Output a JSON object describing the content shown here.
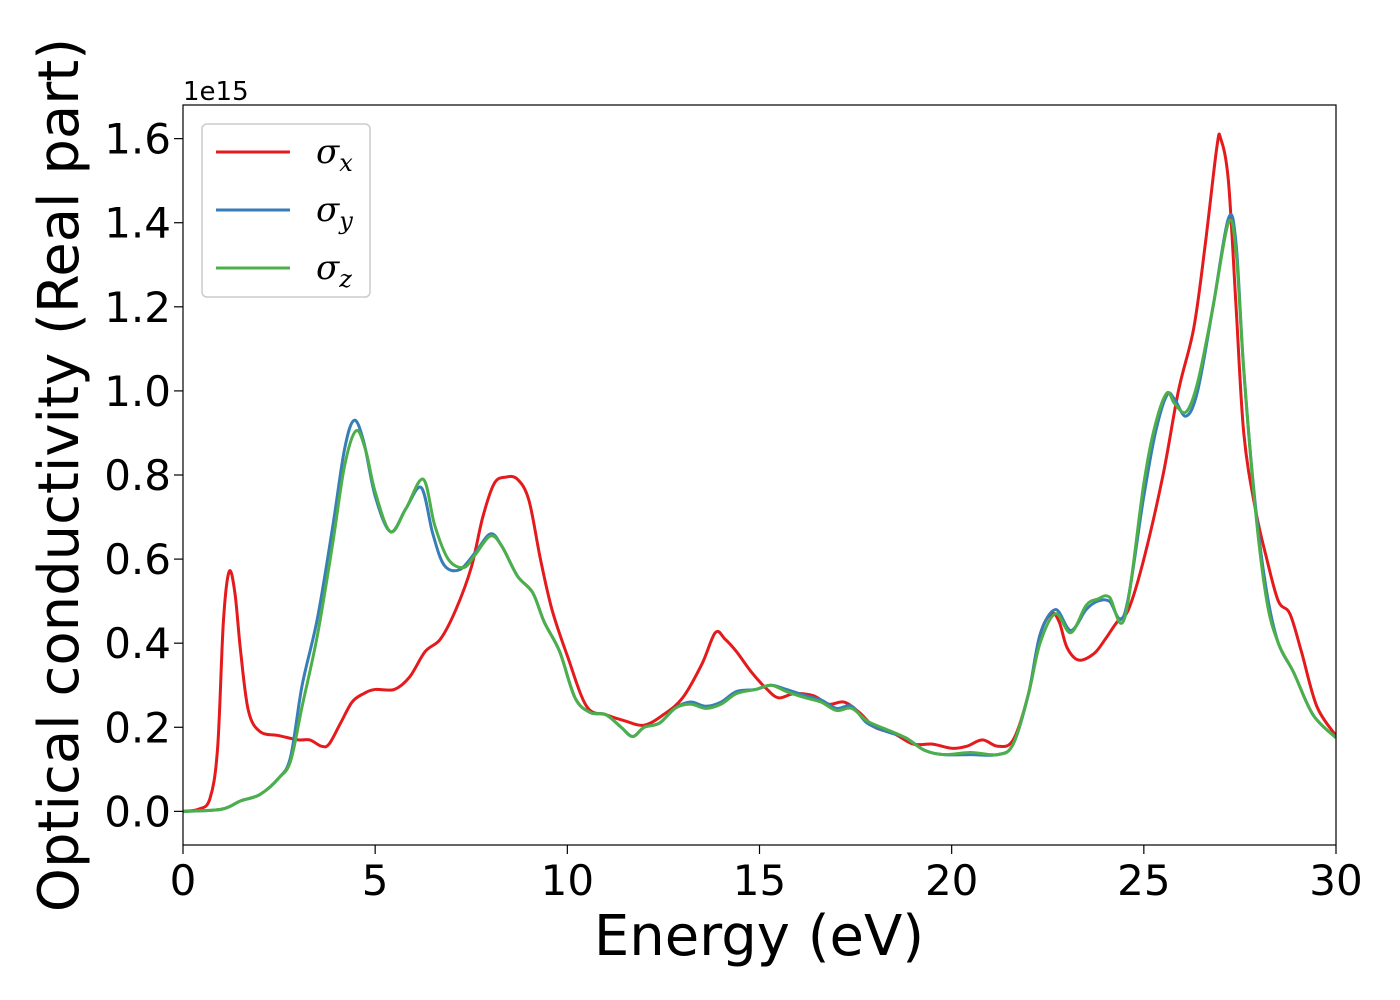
{
  "chart_data": {
    "type": "line",
    "title": "",
    "xlabel": "Energy (eV)",
    "ylabel": "Optical conductivity (Real part)",
    "y_offset_label": "1e15",
    "xlim": [
      0,
      30
    ],
    "ylim": [
      -0.08,
      1.68
    ],
    "x_ticks": [
      0,
      5,
      10,
      15,
      20,
      25,
      30
    ],
    "x_tick_labels": [
      "0",
      "5",
      "10",
      "15",
      "20",
      "25",
      "30"
    ],
    "y_ticks": [
      0.0,
      0.2,
      0.4,
      0.6,
      0.8,
      1.0,
      1.2,
      1.4,
      1.6
    ],
    "y_tick_labels": [
      "0.0",
      "0.2",
      "0.4",
      "0.6",
      "0.8",
      "1.0",
      "1.2",
      "1.4",
      "1.6"
    ],
    "grid": false,
    "legend_position": "top-left",
    "series": [
      {
        "name": "σx",
        "legend_symbol": "σ",
        "legend_subscript": "x",
        "color": "#e41a1c",
        "points": [
          [
            0,
            0
          ],
          [
            0.4,
            0.005
          ],
          [
            0.7,
            0.03
          ],
          [
            0.9,
            0.15
          ],
          [
            1.05,
            0.45
          ],
          [
            1.2,
            0.57
          ],
          [
            1.35,
            0.52
          ],
          [
            1.5,
            0.38
          ],
          [
            1.7,
            0.24
          ],
          [
            2.0,
            0.19
          ],
          [
            2.5,
            0.18
          ],
          [
            3.0,
            0.17
          ],
          [
            3.3,
            0.17
          ],
          [
            3.6,
            0.155
          ],
          [
            3.8,
            0.16
          ],
          [
            4.1,
            0.21
          ],
          [
            4.4,
            0.26
          ],
          [
            4.7,
            0.28
          ],
          [
            5.0,
            0.29
          ],
          [
            5.5,
            0.29
          ],
          [
            5.9,
            0.32
          ],
          [
            6.3,
            0.38
          ],
          [
            6.7,
            0.41
          ],
          [
            7.1,
            0.48
          ],
          [
            7.5,
            0.58
          ],
          [
            7.8,
            0.7
          ],
          [
            8.1,
            0.78
          ],
          [
            8.4,
            0.795
          ],
          [
            8.7,
            0.79
          ],
          [
            9.0,
            0.74
          ],
          [
            9.3,
            0.6
          ],
          [
            9.6,
            0.48
          ],
          [
            10.0,
            0.37
          ],
          [
            10.5,
            0.25
          ],
          [
            11.0,
            0.23
          ],
          [
            11.5,
            0.215
          ],
          [
            12.0,
            0.205
          ],
          [
            12.5,
            0.23
          ],
          [
            13.0,
            0.27
          ],
          [
            13.5,
            0.35
          ],
          [
            13.85,
            0.425
          ],
          [
            14.1,
            0.41
          ],
          [
            14.4,
            0.38
          ],
          [
            14.8,
            0.33
          ],
          [
            15.2,
            0.29
          ],
          [
            15.5,
            0.27
          ],
          [
            15.9,
            0.28
          ],
          [
            16.4,
            0.275
          ],
          [
            16.8,
            0.255
          ],
          [
            17.2,
            0.26
          ],
          [
            17.6,
            0.235
          ],
          [
            18.0,
            0.2
          ],
          [
            18.5,
            0.185
          ],
          [
            19.0,
            0.16
          ],
          [
            19.5,
            0.16
          ],
          [
            20.0,
            0.15
          ],
          [
            20.4,
            0.155
          ],
          [
            20.8,
            0.17
          ],
          [
            21.2,
            0.155
          ],
          [
            21.6,
            0.17
          ],
          [
            22.0,
            0.28
          ],
          [
            22.3,
            0.42
          ],
          [
            22.6,
            0.47
          ],
          [
            22.8,
            0.45
          ],
          [
            23.0,
            0.39
          ],
          [
            23.3,
            0.36
          ],
          [
            23.7,
            0.375
          ],
          [
            24.0,
            0.41
          ],
          [
            24.3,
            0.45
          ],
          [
            24.6,
            0.48
          ],
          [
            25.0,
            0.6
          ],
          [
            25.5,
            0.8
          ],
          [
            25.9,
            1.0
          ],
          [
            26.3,
            1.15
          ],
          [
            26.6,
            1.35
          ],
          [
            26.9,
            1.58
          ],
          [
            27.0,
            1.6
          ],
          [
            27.2,
            1.5
          ],
          [
            27.4,
            1.2
          ],
          [
            27.6,
            0.9
          ],
          [
            27.9,
            0.72
          ],
          [
            28.2,
            0.6
          ],
          [
            28.5,
            0.5
          ],
          [
            28.8,
            0.47
          ],
          [
            29.1,
            0.38
          ],
          [
            29.5,
            0.25
          ],
          [
            30.0,
            0.18
          ]
        ]
      },
      {
        "name": "σy",
        "legend_symbol": "σ",
        "legend_subscript": "y",
        "color": "#377eb8",
        "points": [
          [
            0,
            0
          ],
          [
            1.0,
            0.005
          ],
          [
            1.5,
            0.025
          ],
          [
            2.0,
            0.04
          ],
          [
            2.5,
            0.08
          ],
          [
            2.8,
            0.13
          ],
          [
            3.1,
            0.3
          ],
          [
            3.5,
            0.46
          ],
          [
            3.9,
            0.68
          ],
          [
            4.2,
            0.86
          ],
          [
            4.45,
            0.93
          ],
          [
            4.7,
            0.88
          ],
          [
            5.0,
            0.75
          ],
          [
            5.4,
            0.665
          ],
          [
            5.8,
            0.72
          ],
          [
            6.2,
            0.77
          ],
          [
            6.5,
            0.66
          ],
          [
            6.8,
            0.585
          ],
          [
            7.2,
            0.575
          ],
          [
            7.6,
            0.615
          ],
          [
            8.0,
            0.66
          ],
          [
            8.3,
            0.63
          ],
          [
            8.7,
            0.56
          ],
          [
            9.1,
            0.52
          ],
          [
            9.4,
            0.45
          ],
          [
            9.8,
            0.38
          ],
          [
            10.2,
            0.27
          ],
          [
            10.6,
            0.235
          ],
          [
            11.0,
            0.23
          ],
          [
            11.4,
            0.2
          ],
          [
            11.7,
            0.178
          ],
          [
            12.0,
            0.2
          ],
          [
            12.4,
            0.21
          ],
          [
            12.8,
            0.245
          ],
          [
            13.2,
            0.26
          ],
          [
            13.6,
            0.25
          ],
          [
            14.0,
            0.26
          ],
          [
            14.4,
            0.285
          ],
          [
            14.9,
            0.29
          ],
          [
            15.3,
            0.3
          ],
          [
            15.7,
            0.29
          ],
          [
            16.2,
            0.275
          ],
          [
            16.6,
            0.265
          ],
          [
            17.0,
            0.245
          ],
          [
            17.4,
            0.25
          ],
          [
            17.8,
            0.21
          ],
          [
            18.3,
            0.19
          ],
          [
            18.8,
            0.175
          ],
          [
            19.3,
            0.145
          ],
          [
            19.8,
            0.135
          ],
          [
            20.5,
            0.135
          ],
          [
            21.2,
            0.135
          ],
          [
            21.6,
            0.16
          ],
          [
            22.0,
            0.28
          ],
          [
            22.3,
            0.42
          ],
          [
            22.7,
            0.48
          ],
          [
            23.1,
            0.43
          ],
          [
            23.5,
            0.48
          ],
          [
            23.8,
            0.5
          ],
          [
            24.1,
            0.5
          ],
          [
            24.5,
            0.47
          ],
          [
            25.0,
            0.75
          ],
          [
            25.3,
            0.9
          ],
          [
            25.6,
            0.99
          ],
          [
            25.8,
            0.98
          ],
          [
            26.1,
            0.94
          ],
          [
            26.4,
            1.0
          ],
          [
            26.8,
            1.2
          ],
          [
            27.2,
            1.41
          ],
          [
            27.4,
            1.35
          ],
          [
            27.6,
            1.05
          ],
          [
            27.9,
            0.73
          ],
          [
            28.2,
            0.52
          ],
          [
            28.5,
            0.4
          ],
          [
            28.9,
            0.33
          ],
          [
            29.4,
            0.23
          ],
          [
            30.0,
            0.175
          ]
        ]
      },
      {
        "name": "σz",
        "legend_symbol": "σ",
        "legend_subscript": "z",
        "color": "#4daf4a",
        "points": [
          [
            0,
            0
          ],
          [
            1.0,
            0.005
          ],
          [
            1.5,
            0.025
          ],
          [
            2.0,
            0.04
          ],
          [
            2.5,
            0.08
          ],
          [
            2.8,
            0.12
          ],
          [
            3.1,
            0.25
          ],
          [
            3.5,
            0.42
          ],
          [
            3.9,
            0.64
          ],
          [
            4.2,
            0.82
          ],
          [
            4.5,
            0.905
          ],
          [
            4.75,
            0.86
          ],
          [
            5.0,
            0.76
          ],
          [
            5.4,
            0.665
          ],
          [
            5.8,
            0.72
          ],
          [
            6.25,
            0.79
          ],
          [
            6.55,
            0.68
          ],
          [
            6.9,
            0.6
          ],
          [
            7.3,
            0.58
          ],
          [
            7.6,
            0.61
          ],
          [
            8.0,
            0.655
          ],
          [
            8.3,
            0.63
          ],
          [
            8.7,
            0.56
          ],
          [
            9.1,
            0.52
          ],
          [
            9.4,
            0.45
          ],
          [
            9.8,
            0.38
          ],
          [
            10.2,
            0.27
          ],
          [
            10.6,
            0.235
          ],
          [
            11.0,
            0.23
          ],
          [
            11.4,
            0.2
          ],
          [
            11.7,
            0.178
          ],
          [
            12.0,
            0.2
          ],
          [
            12.4,
            0.21
          ],
          [
            12.8,
            0.245
          ],
          [
            13.2,
            0.255
          ],
          [
            13.6,
            0.245
          ],
          [
            14.0,
            0.255
          ],
          [
            14.4,
            0.28
          ],
          [
            14.9,
            0.29
          ],
          [
            15.3,
            0.3
          ],
          [
            15.7,
            0.285
          ],
          [
            16.2,
            0.27
          ],
          [
            16.6,
            0.26
          ],
          [
            17.0,
            0.24
          ],
          [
            17.4,
            0.245
          ],
          [
            17.8,
            0.215
          ],
          [
            18.3,
            0.195
          ],
          [
            18.8,
            0.175
          ],
          [
            19.3,
            0.145
          ],
          [
            19.8,
            0.135
          ],
          [
            20.5,
            0.14
          ],
          [
            21.2,
            0.135
          ],
          [
            21.6,
            0.16
          ],
          [
            22.0,
            0.28
          ],
          [
            22.3,
            0.4
          ],
          [
            22.7,
            0.47
          ],
          [
            23.1,
            0.425
          ],
          [
            23.5,
            0.49
          ],
          [
            23.8,
            0.505
          ],
          [
            24.1,
            0.51
          ],
          [
            24.5,
            0.46
          ],
          [
            25.0,
            0.78
          ],
          [
            25.3,
            0.92
          ],
          [
            25.6,
            0.995
          ],
          [
            25.8,
            0.97
          ],
          [
            26.1,
            0.95
          ],
          [
            26.4,
            1.02
          ],
          [
            26.8,
            1.2
          ],
          [
            27.2,
            1.4
          ],
          [
            27.4,
            1.33
          ],
          [
            27.6,
            1.05
          ],
          [
            27.9,
            0.72
          ],
          [
            28.2,
            0.5
          ],
          [
            28.5,
            0.4
          ],
          [
            28.9,
            0.33
          ],
          [
            29.4,
            0.23
          ],
          [
            30.0,
            0.175
          ]
        ]
      }
    ]
  }
}
